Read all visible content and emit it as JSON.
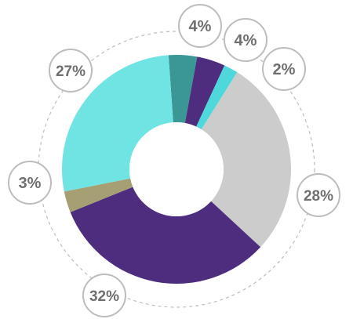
{
  "chart_data": {
    "type": "pie",
    "donut": true,
    "legend": "none",
    "slices": [
      {
        "label": "4%",
        "value": 4,
        "color": "#3b9696"
      },
      {
        "label": "4%",
        "value": 4,
        "color": "#4e2d7f"
      },
      {
        "label": "2%",
        "value": 2,
        "color": "#4fd8dc"
      },
      {
        "label": "28%",
        "value": 28,
        "color": "#cccccc"
      },
      {
        "label": "32%",
        "value": 32,
        "color": "#4e2d7f"
      },
      {
        "label": "3%",
        "value": 3,
        "color": "#a59f73"
      },
      {
        "label": "27%",
        "value": 27,
        "color": "#70e3e3"
      }
    ],
    "start_angle_deg": -4,
    "bubble_border_color": "#bdbdbd",
    "label_color": "#6f6f6f",
    "guide_circle_color": "#bdbdbd"
  }
}
